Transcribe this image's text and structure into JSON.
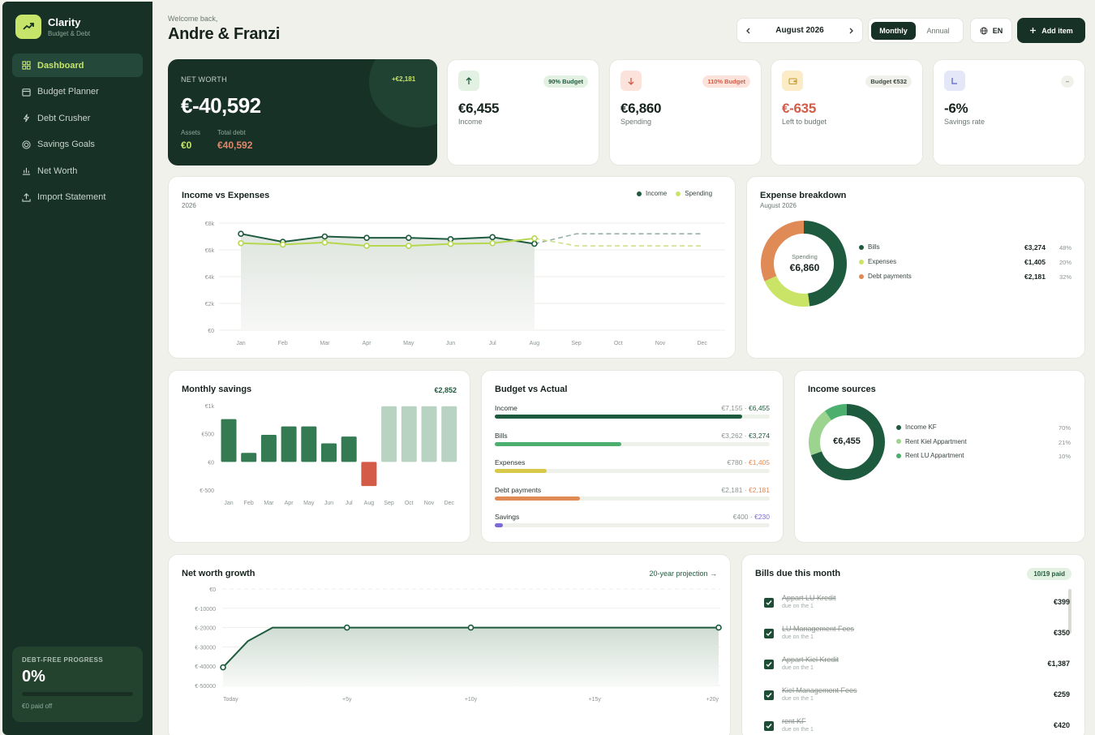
{
  "app": {
    "name": "Clarity",
    "tagline": "Budget & Debt"
  },
  "nav": [
    {
      "label": "Dashboard",
      "icon": "grid-icon"
    },
    {
      "label": "Budget Planner",
      "icon": "calendar-icon"
    },
    {
      "label": "Debt Crusher",
      "icon": "bolt-icon"
    },
    {
      "label": "Savings Goals",
      "icon": "target-icon"
    },
    {
      "label": "Net Worth",
      "icon": "bar-chart-icon"
    },
    {
      "label": "Import Statement",
      "icon": "upload-icon"
    }
  ],
  "debt_progress": {
    "label": "DEBT-FREE PROGRESS",
    "value": "0%",
    "progress": 0,
    "sub": "€0 paid off"
  },
  "header": {
    "welcome": "Welcome back,",
    "names": "Andre & Franzi",
    "month": "August 2026",
    "period_options": [
      "Monthly",
      "Annual"
    ],
    "period_selected": "Monthly",
    "lang": "EN",
    "add_label": "Add item"
  },
  "net_worth": {
    "label": "NET WORTH",
    "value": "€-40,592",
    "badge": "+€2,181",
    "assets_label": "Assets",
    "assets": "€0",
    "debt_label": "Total debt",
    "debt": "€40,592"
  },
  "kpis": [
    {
      "icon": "arrow-up-icon",
      "badge": "90% Budget",
      "value": "€6,455",
      "label": "Income"
    },
    {
      "icon": "arrow-down-icon",
      "badge": "110% Budget",
      "value": "€6,860",
      "label": "Spending"
    },
    {
      "icon": "wallet-icon",
      "badge": "Budget €532",
      "value": "€-635",
      "label": "Left to budget"
    },
    {
      "icon": "trend-icon",
      "badge": "–",
      "value": "-6%",
      "label": "Savings rate"
    }
  ],
  "colors": {
    "dark": "#173127",
    "lime": "#c7e46a",
    "green": "#2d6a4a",
    "orange": "#e08a55",
    "red": "#d35b47",
    "purple": "#7a6bd6"
  },
  "income_vs_expenses": {
    "title": "Income vs Expenses",
    "subtitle": "2026",
    "legend": [
      "Income",
      "Spending"
    ],
    "chart_data": {
      "type": "line",
      "categories": [
        "Jan",
        "Feb",
        "Mar",
        "Apr",
        "May",
        "Jun",
        "Jul",
        "Aug",
        "Sep",
        "Oct",
        "Nov",
        "Dec"
      ],
      "yticks": [
        "€8k",
        "€6k",
        "€4k",
        "€2k",
        "€0"
      ],
      "ylim": [
        0,
        8000
      ],
      "series": [
        {
          "name": "Income",
          "values": [
            7200,
            6600,
            7000,
            6900,
            6900,
            6800,
            6950,
            6455,
            7200,
            7200,
            7200,
            7200
          ],
          "actual_count": 8
        },
        {
          "name": "Spending",
          "values": [
            6500,
            6400,
            6550,
            6300,
            6300,
            6450,
            6500,
            6860,
            6300,
            6300,
            6300,
            6300
          ],
          "actual_count": 8
        }
      ]
    }
  },
  "expense_breakdown": {
    "title": "Expense breakdown",
    "subtitle": "August 2026",
    "center_label": "Spending",
    "center_value": "€6,860",
    "chart_data": {
      "type": "pie",
      "categories": [
        "Bills",
        "Expenses",
        "Debt payments"
      ],
      "values": [
        3274,
        1405,
        2181
      ]
    },
    "rows": [
      {
        "name": "Bills",
        "amount": "€3,274",
        "pct": "48%",
        "color": "#1e5b3e"
      },
      {
        "name": "Expenses",
        "amount": "€1,405",
        "pct": "20%",
        "color": "#c9e466"
      },
      {
        "name": "Debt payments",
        "amount": "€2,181",
        "pct": "32%",
        "color": "#e08a55"
      }
    ]
  },
  "monthly_savings": {
    "title": "Monthly savings",
    "total": "€2,852",
    "chart_data": {
      "type": "bar",
      "categories": [
        "Jan",
        "Feb",
        "Mar",
        "Apr",
        "May",
        "Jun",
        "Jul",
        "Aug",
        "Sep",
        "Oct",
        "Nov",
        "Dec"
      ],
      "values": [
        760,
        160,
        480,
        630,
        630,
        330,
        450,
        -430,
        990,
        990,
        990,
        990
      ],
      "actual_count": 8,
      "yticks": [
        "€1k",
        "€500",
        "€0",
        "€-500"
      ],
      "ylim": [
        -500,
        1000
      ]
    }
  },
  "budget_vs_actual": {
    "title": "Budget vs Actual",
    "rows": [
      {
        "name": "Income",
        "budget": "€7,155",
        "actual": "€6,455",
        "progress": 0.9,
        "color": "#1e5b3e",
        "actual_color": "#1e5b3e"
      },
      {
        "name": "Bills",
        "budget": "€3,262",
        "actual": "€3,274",
        "progress": 0.46,
        "color": "#4caf6d",
        "actual_color": "#1e5b3e"
      },
      {
        "name": "Expenses",
        "budget": "€780",
        "actual": "€1,405",
        "progress": 0.19,
        "color": "#d8c94a",
        "actual_color": "#e08a55"
      },
      {
        "name": "Debt payments",
        "budget": "€2,181",
        "actual": "€2,181",
        "progress": 0.31,
        "color": "#e08a55",
        "actual_color": "#e08a55"
      },
      {
        "name": "Savings",
        "budget": "€400",
        "actual": "€230",
        "progress": 0.03,
        "color": "#7a6bd6",
        "actual_color": "#7a6bd6"
      }
    ]
  },
  "income_sources": {
    "title": "Income sources",
    "center_value": "€6,455",
    "chart_data": {
      "type": "pie",
      "categories": [
        "Income KF",
        "Rent Kiel Appartment",
        "Rent LU Appartment"
      ],
      "values": [
        70,
        21,
        10
      ]
    },
    "rows": [
      {
        "name": "Income KF",
        "pct": "70%",
        "color": "#1e5b3e"
      },
      {
        "name": "Rent Kiel Appartment",
        "pct": "21%",
        "color": "#9bd38f"
      },
      {
        "name": "Rent LU Appartment",
        "pct": "10%",
        "color": "#4caf6d"
      }
    ]
  },
  "net_worth_growth": {
    "title": "Net worth growth",
    "link": "20-year projection →",
    "chart_data": {
      "type": "area",
      "x": [
        "Today",
        "+5y",
        "+10y",
        "+15y",
        "+20y"
      ],
      "yticks": [
        "€0",
        "€-10000",
        "€-20000",
        "€-30000",
        "€-40000",
        "€-50000"
      ],
      "ylim": [
        -50000,
        0
      ],
      "points": [
        [
          0,
          -40592
        ],
        [
          1,
          -27000
        ],
        [
          2,
          -20000
        ],
        [
          5,
          -20000
        ],
        [
          10,
          -20000
        ],
        [
          15,
          -20000
        ],
        [
          20,
          -20000
        ]
      ],
      "markers": [
        0,
        5,
        10,
        20
      ]
    }
  },
  "bills": {
    "title": "Bills due this month",
    "badge": "10/19 paid",
    "items": [
      {
        "name": "Appart LU Kredit",
        "due": "due on the 1",
        "amount": "€399"
      },
      {
        "name": "LU Management Fees",
        "due": "due on the 1",
        "amount": "€350"
      },
      {
        "name": "Appart Kiel Kredit",
        "due": "due on the 1",
        "amount": "€1,387"
      },
      {
        "name": "Kiel Management Fees",
        "due": "due on the 1",
        "amount": "€259"
      },
      {
        "name": "rent KF",
        "due": "due on the 1",
        "amount": "€420"
      }
    ]
  }
}
